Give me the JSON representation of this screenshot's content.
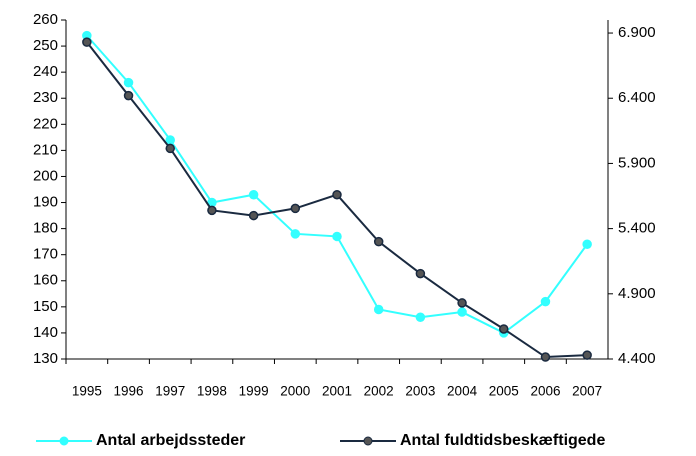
{
  "chart_data": {
    "type": "line",
    "categories": [
      "1995",
      "1996",
      "1997",
      "1998",
      "1999",
      "2000",
      "2001",
      "2002",
      "2003",
      "2004",
      "2005",
      "2006",
      "2007"
    ],
    "series": [
      {
        "name": "Antal arbejdssteder",
        "color": "#33ffff",
        "values": [
          254,
          236,
          214,
          190,
          193,
          178,
          177,
          149,
          146,
          148,
          140,
          152,
          174
        ]
      },
      {
        "name": "Antal fuldtidsbeskæftigede",
        "color": "#1a2a40",
        "axis": "y2",
        "values": [
          6830,
          6420,
          6015,
          5540,
          5500,
          5555,
          5660,
          5300,
          5055,
          4830,
          4630,
          4415,
          4430
        ]
      }
    ],
    "ylim": [
      130,
      260
    ],
    "yticks": [
      130,
      140,
      150,
      160,
      170,
      180,
      190,
      200,
      210,
      220,
      230,
      240,
      250,
      260
    ],
    "y2lim": [
      4400,
      7000
    ],
    "y2ticks": [
      {
        "value": 4400,
        "label": "4.400"
      },
      {
        "value": 4900,
        "label": "4.900"
      },
      {
        "value": 5400,
        "label": "5.400"
      },
      {
        "value": 5900,
        "label": "5.900"
      },
      {
        "value": 6400,
        "label": "6.400"
      },
      {
        "value": 6900,
        "label": "6.900"
      }
    ],
    "legend": "bottom"
  }
}
